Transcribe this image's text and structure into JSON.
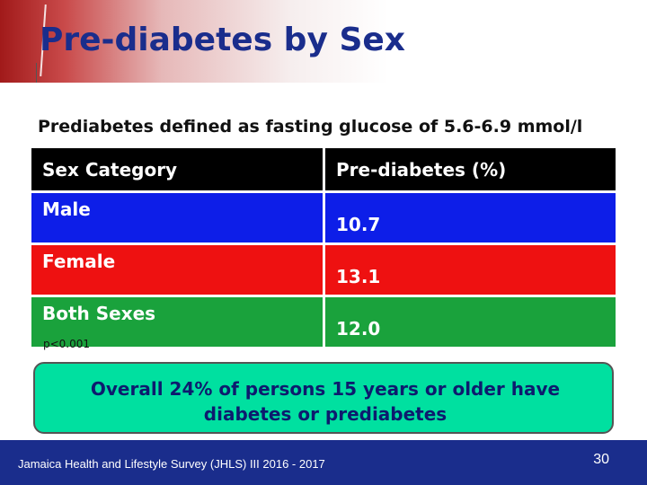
{
  "slide": {
    "title": "Pre-diabetes by Sex",
    "subtitle": "Prediabetes defined as fasting glucose of  5.6-6.9 mmol/l",
    "table": {
      "headers": [
        "Sex Category",
        "Pre-diabetes (%)"
      ],
      "rows": [
        [
          "Male",
          "10.7"
        ],
        [
          "Female",
          "13.1"
        ],
        [
          "Both Sexes",
          "12.0"
        ]
      ]
    },
    "p_value": "p<0.001",
    "callout": {
      "line1": "Overall 24% of persons 15 years or older have",
      "line2": "diabetes or prediabetes"
    },
    "footer": "Jamaica Health and Lifestyle Survey (JHLS) III 2016 - 2017",
    "page_number": "30"
  }
}
